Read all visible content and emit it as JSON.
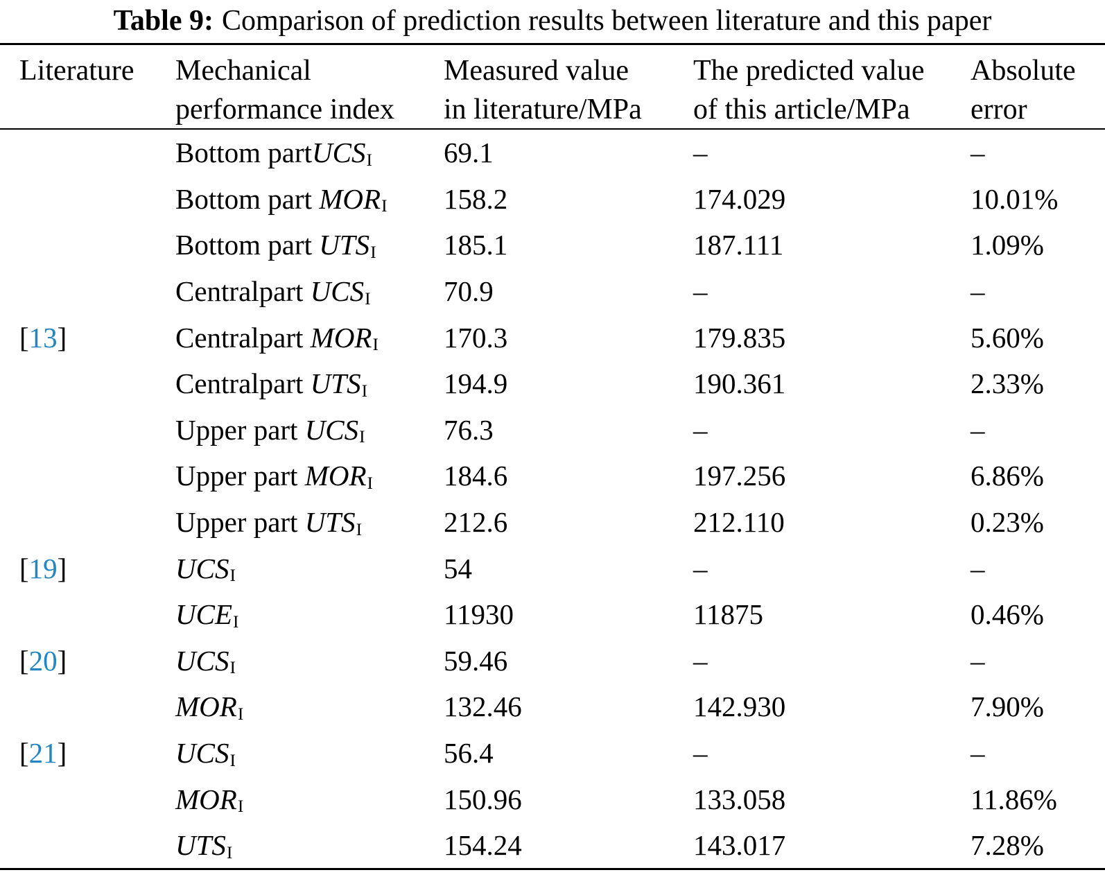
{
  "title": {
    "label": "Table 9:",
    "text": "Comparison of prediction results between literature and this paper"
  },
  "colors": {
    "citation_blue": "#2286c3",
    "text": "#000000",
    "rule": "#000000"
  },
  "table": {
    "headers": [
      {
        "line1": "Literature",
        "line2": ""
      },
      {
        "line1": "Mechanical",
        "line2": "performance index"
      },
      {
        "line1": "Measured value",
        "line2": "in literature/MPa"
      },
      {
        "line1": "The predicted value",
        "line2": "of this article/MPa"
      },
      {
        "line1": "Absolute",
        "line2": "error"
      }
    ],
    "rows": [
      {
        "ref": "",
        "prefix": "Bottom part",
        "symbol": "UCS",
        "sub": "I",
        "measured": "69.1",
        "predicted": "–",
        "error": "–"
      },
      {
        "ref": "",
        "prefix": "Bottom part ",
        "symbol": "MOR",
        "sub": "I",
        "measured": "158.2",
        "predicted": "174.029",
        "error": "10.01%"
      },
      {
        "ref": "",
        "prefix": "Bottom part ",
        "symbol": "UTS",
        "sub": "I",
        "measured": "185.1",
        "predicted": "187.111",
        "error": "1.09%"
      },
      {
        "ref": "",
        "prefix": "Centralpart ",
        "symbol": "UCS",
        "sub": "I",
        "measured": "70.9",
        "predicted": "–",
        "error": "–"
      },
      {
        "ref": "13",
        "prefix": "Centralpart ",
        "symbol": "MOR",
        "sub": "I",
        "measured": "170.3",
        "predicted": "179.835",
        "error": "5.60%"
      },
      {
        "ref": "",
        "prefix": "Centralpart ",
        "symbol": "UTS",
        "sub": "I",
        "measured": "194.9",
        "predicted": "190.361",
        "error": "2.33%"
      },
      {
        "ref": "",
        "prefix": "Upper part ",
        "symbol": "UCS",
        "sub": "I",
        "measured": "76.3",
        "predicted": "–",
        "error": "–"
      },
      {
        "ref": "",
        "prefix": "Upper part ",
        "symbol": "MOR",
        "sub": "I",
        "measured": "184.6",
        "predicted": "197.256",
        "error": "6.86%"
      },
      {
        "ref": "",
        "prefix": "Upper part ",
        "symbol": "UTS",
        "sub": "I",
        "measured": "212.6",
        "predicted": "212.110",
        "error": "0.23%"
      },
      {
        "ref": "19",
        "prefix": "",
        "symbol": "UCS",
        "sub": "I",
        "measured": "54",
        "predicted": "–",
        "error": "–"
      },
      {
        "ref": "",
        "prefix": "",
        "symbol": "UCE",
        "sub": "I",
        "measured": "11930",
        "predicted": "11875",
        "error": "0.46%"
      },
      {
        "ref": "20",
        "prefix": "",
        "symbol": "UCS",
        "sub": "I",
        "measured": "59.46",
        "predicted": "–",
        "error": "–"
      },
      {
        "ref": "",
        "prefix": "",
        "symbol": "MOR",
        "sub": "I",
        "measured": "132.46",
        "predicted": "142.930",
        "error": "7.90%"
      },
      {
        "ref": "21",
        "prefix": "",
        "symbol": "UCS",
        "sub": "I",
        "measured": "56.4",
        "predicted": "–",
        "error": "–"
      },
      {
        "ref": "",
        "prefix": "",
        "symbol": "MOR",
        "sub": "I",
        "measured": "150.96",
        "predicted": "133.058",
        "error": "11.86%"
      },
      {
        "ref": "",
        "prefix": "",
        "symbol": "UTS",
        "sub": "I",
        "measured": "154.24",
        "predicted": "143.017",
        "error": "7.28%"
      }
    ]
  }
}
